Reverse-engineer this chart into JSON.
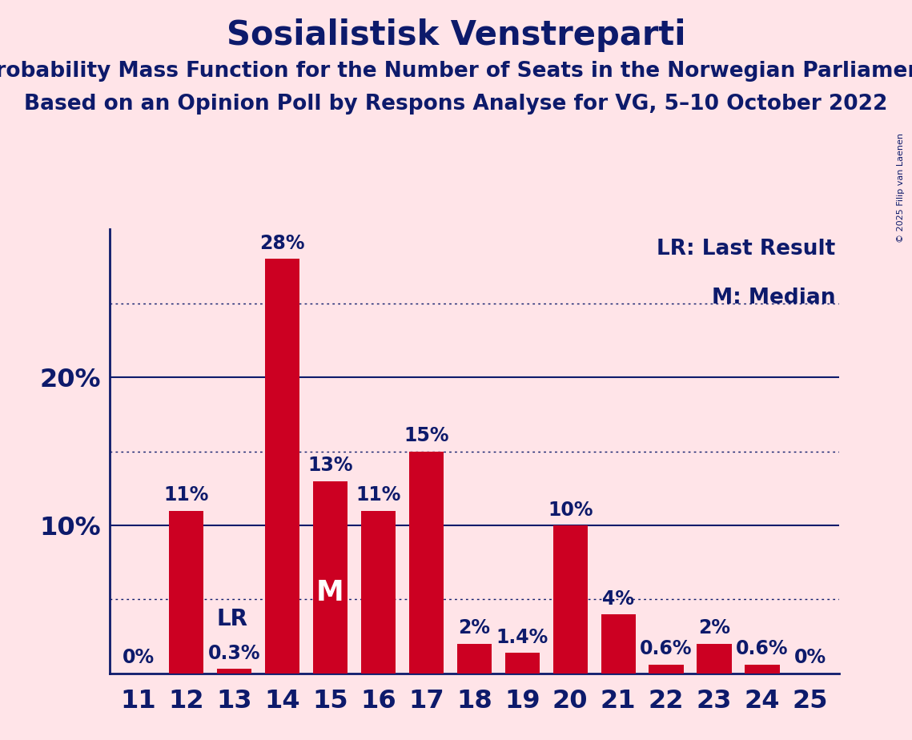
{
  "title": "Sosialistisk Venstreparti",
  "subtitle1": "Probability Mass Function for the Number of Seats in the Norwegian Parliament",
  "subtitle2": "Based on an Opinion Poll by Respons Analyse for VG, 5–10 October 2022",
  "copyright": "© 2025 Filip van Laenen",
  "seats": [
    11,
    12,
    13,
    14,
    15,
    16,
    17,
    18,
    19,
    20,
    21,
    22,
    23,
    24,
    25
  ],
  "values": [
    0.0,
    0.11,
    0.003,
    0.28,
    0.13,
    0.11,
    0.15,
    0.02,
    0.014,
    0.1,
    0.04,
    0.006,
    0.02,
    0.006,
    0.0
  ],
  "bar_labels": [
    "0%",
    "11%",
    "0.3%",
    "28%",
    "13%",
    "11%",
    "15%",
    "2%",
    "1.4%",
    "10%",
    "4%",
    "0.6%",
    "2%",
    "0.6%",
    "0%"
  ],
  "bar_color": "#CC0022",
  "background_color": "#FFE4E8",
  "text_color": "#0D1A6B",
  "lr_seat": 13,
  "median_seat": 15,
  "ylim": [
    0,
    0.3
  ],
  "solid_gridlines": [
    0.1,
    0.2
  ],
  "dotted_gridlines": [
    0.05,
    0.15,
    0.25
  ],
  "ytick_values": [
    0.0,
    0.1,
    0.2
  ],
  "ytick_labels": [
    "",
    "10%",
    "20%"
  ],
  "legend_lr": "LR: Last Result",
  "legend_m": "M: Median",
  "title_fontsize": 30,
  "subtitle_fontsize": 19,
  "axis_fontsize": 23,
  "bar_label_fontsize": 17,
  "legend_fontsize": 19,
  "copyright_fontsize": 8
}
